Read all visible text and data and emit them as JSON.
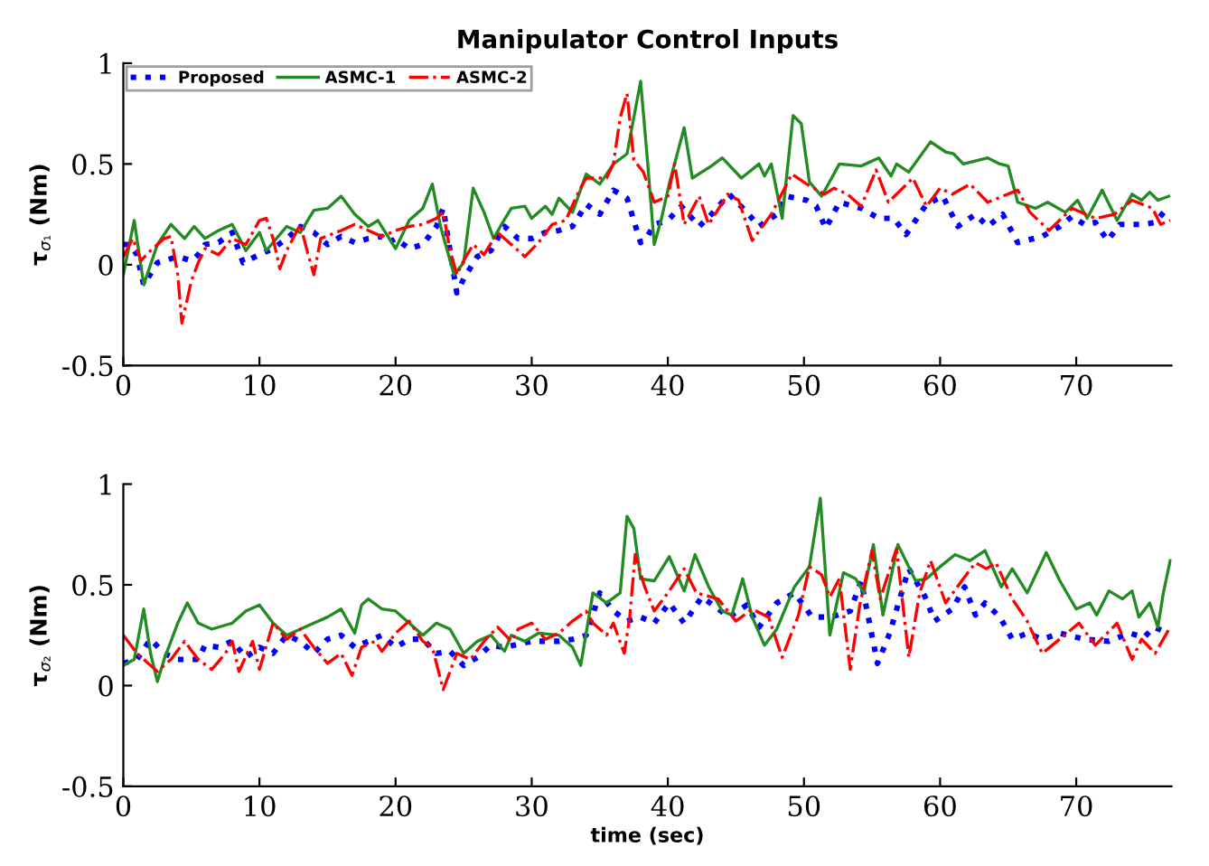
{
  "chart_data": [
    {
      "type": "line",
      "title": "Manipulator Control Inputs",
      "ylabel": "τ$_{σ₁}$ (Nm)",
      "xlim": [
        0,
        77
      ],
      "xticks": [
        0,
        10,
        20,
        30,
        40,
        50,
        60,
        70
      ],
      "ylim": [
        -0.5,
        1
      ],
      "yticks": [
        -0.5,
        0,
        0.5,
        1
      ],
      "grid": false,
      "legend": "top left",
      "series": [
        {
          "name": "Proposed",
          "color": "#0000ff",
          "line_style": "dotted",
          "x": [
            0,
            0.5,
            1,
            1.5,
            2.5,
            3,
            4,
            5,
            5.5,
            6,
            7,
            8,
            8.8,
            10,
            11,
            12,
            13,
            14,
            15,
            16,
            17,
            18,
            19,
            19.5,
            20,
            21,
            22,
            23,
            23.5,
            24,
            24.5,
            25,
            26,
            27,
            28,
            29,
            30,
            31,
            32,
            33,
            34,
            35,
            36,
            37,
            38,
            38.5,
            39,
            40,
            41,
            42.3,
            43.2,
            44.5,
            45.8,
            46.7,
            48.0,
            48.7,
            50.2,
            50.9,
            51.6,
            52.6,
            54.2,
            55.5,
            56.6,
            57.5,
            58.2,
            59.0,
            60.2,
            61.3,
            62.6,
            63.5,
            64.6,
            65.7,
            67.5,
            68.8,
            69.7,
            70.6,
            71.4,
            72.3,
            73.2,
            75.0,
            75.8,
            76.8
          ],
          "values": [
            0.1,
            0.1,
            0.05,
            -0.1,
            0.01,
            0.02,
            0.04,
            0.02,
            0.05,
            0.1,
            0.11,
            0.16,
            0.01,
            0.05,
            0.08,
            0.13,
            0.19,
            0.16,
            0.1,
            0.14,
            0.11,
            0.13,
            0.14,
            0.11,
            0.13,
            0.08,
            0.1,
            0.19,
            0.28,
            0.07,
            -0.14,
            -0.07,
            0.04,
            0.07,
            0.19,
            0.13,
            0.13,
            0.16,
            0.17,
            0.19,
            0.3,
            0.25,
            0.37,
            0.33,
            0.11,
            0.14,
            0.2,
            0.22,
            0.29,
            0.19,
            0.25,
            0.35,
            0.26,
            0.19,
            0.25,
            0.34,
            0.32,
            0.29,
            0.18,
            0.31,
            0.28,
            0.23,
            0.23,
            0.15,
            0.22,
            0.3,
            0.34,
            0.19,
            0.25,
            0.19,
            0.25,
            0.11,
            0.14,
            0.19,
            0.24,
            0.2,
            0.21,
            0.12,
            0.2,
            0.2,
            0.21,
            0.29
          ]
        },
        {
          "name": "ASMC-1",
          "color": "#228b22",
          "line_style": "solid",
          "x": [
            0,
            0.8,
            1.5,
            2.5,
            3.5,
            4.5,
            5.2,
            6,
            7,
            8,
            9,
            10,
            10.5,
            12,
            13,
            14,
            15,
            16,
            17,
            18,
            18.7,
            20,
            21,
            22,
            22.7,
            23.3,
            24.3,
            25,
            25.7,
            26.5,
            27.2,
            27.7,
            28.5,
            29.5,
            30,
            31,
            31.5,
            32,
            33,
            34,
            35,
            36,
            37,
            38,
            38.5,
            39,
            39.5,
            40.1,
            41.2,
            41.8,
            43.2,
            44.0,
            45.4,
            46.7,
            47.1,
            47.6,
            48.4,
            49.2,
            49.8,
            50.4,
            51.3,
            52.6,
            54.2,
            55.5,
            56.4,
            56.8,
            57.7,
            59.3,
            60.4,
            61.0,
            61.7,
            63.5,
            64.4,
            65.0,
            65.7,
            67.0,
            67.9,
            69.2,
            70.1,
            70.8,
            71.9,
            73.0,
            74.1,
            74.8,
            75.4,
            76.0,
            76.8
          ],
          "values": [
            -0.05,
            0.22,
            -0.1,
            0.1,
            0.2,
            0.13,
            0.19,
            0.13,
            0.17,
            0.2,
            0.07,
            0.16,
            0.07,
            0.19,
            0.16,
            0.27,
            0.28,
            0.34,
            0.25,
            0.19,
            0.22,
            0.08,
            0.22,
            0.28,
            0.4,
            0.19,
            -0.05,
            0.01,
            0.38,
            0.26,
            0.13,
            0.19,
            0.28,
            0.29,
            0.23,
            0.29,
            0.25,
            0.33,
            0.26,
            0.45,
            0.4,
            0.5,
            0.55,
            0.91,
            0.52,
            0.1,
            0.22,
            0.4,
            0.68,
            0.43,
            0.49,
            0.53,
            0.43,
            0.5,
            0.44,
            0.5,
            0.23,
            0.74,
            0.7,
            0.41,
            0.34,
            0.5,
            0.49,
            0.53,
            0.44,
            0.5,
            0.46,
            0.61,
            0.56,
            0.55,
            0.5,
            0.53,
            0.5,
            0.49,
            0.31,
            0.28,
            0.31,
            0.26,
            0.32,
            0.23,
            0.37,
            0.22,
            0.35,
            0.32,
            0.36,
            0.32,
            0.34
          ]
        },
        {
          "name": "ASMC-2",
          "color": "#ff0000",
          "line_style": "dashdot",
          "x": [
            0,
            0.7,
            1.3,
            2,
            3,
            3.5,
            4,
            4.3,
            5,
            5.5,
            6,
            7,
            8,
            9,
            10,
            10.5,
            11,
            11.5,
            12,
            13,
            13.5,
            14,
            14.5,
            16,
            17,
            18,
            19,
            20,
            21,
            22,
            23,
            23.5,
            24,
            24.5,
            25,
            25.7,
            26.5,
            27.5,
            28.5,
            29.5,
            30.5,
            31.5,
            32.5,
            33.5,
            34,
            35.5,
            36,
            36.5,
            37,
            37.5,
            38.2,
            39,
            40,
            40.5,
            41.2,
            42.3,
            43.0,
            44.4,
            45.2,
            46.2,
            47.6,
            49.1,
            50.2,
            51.5,
            52.2,
            53.2,
            54.2,
            55.3,
            56.2,
            58.0,
            59.0,
            60.0,
            60.9,
            62.2,
            63.5,
            65.7,
            66.6,
            68.0,
            69.7,
            71.4,
            72.8,
            74.1,
            75.6,
            76.2,
            76.9
          ],
          "values": [
            0.04,
            0.13,
            0.02,
            0.07,
            0.13,
            0.14,
            -0.05,
            -0.29,
            -0.08,
            0.01,
            0.08,
            0.05,
            0.13,
            0.1,
            0.22,
            0.23,
            0.13,
            -0.02,
            0.07,
            0.2,
            0.07,
            -0.05,
            0.13,
            0.17,
            0.2,
            0.17,
            0.14,
            0.17,
            0.19,
            0.2,
            0.23,
            0.26,
            0.07,
            -0.05,
            0.02,
            0.1,
            0.05,
            0.16,
            0.1,
            0.04,
            0.11,
            0.2,
            0.22,
            0.37,
            0.43,
            0.43,
            0.5,
            0.73,
            0.85,
            0.52,
            0.46,
            0.31,
            0.34,
            0.5,
            0.2,
            0.34,
            0.2,
            0.35,
            0.32,
            0.12,
            0.25,
            0.45,
            0.4,
            0.35,
            0.38,
            0.35,
            0.29,
            0.47,
            0.31,
            0.43,
            0.29,
            0.38,
            0.35,
            0.4,
            0.31,
            0.37,
            0.26,
            0.17,
            0.28,
            0.23,
            0.25,
            0.32,
            0.28,
            0.2,
            0.22
          ]
        }
      ]
    },
    {
      "type": "line",
      "xlabel": "time (sec)",
      "ylabel": "τ$_{σ₂}$ (Nm)",
      "xlim": [
        0,
        77
      ],
      "xticks": [
        0,
        10,
        20,
        30,
        40,
        50,
        60,
        70
      ],
      "ylim": [
        -0.5,
        1
      ],
      "yticks": [
        -0.5,
        0,
        0.5,
        1
      ],
      "grid": false,
      "series": [
        {
          "color": "#0000ff",
          "line_style": "dotted",
          "x": [
            0,
            1,
            2,
            3,
            4,
            5.5,
            6,
            7,
            8,
            9,
            10,
            11,
            12,
            13,
            14,
            15,
            16,
            17,
            18,
            19,
            20,
            21,
            22,
            23,
            24,
            25,
            26,
            27,
            28,
            30,
            32,
            33,
            34,
            35,
            36,
            37,
            38,
            39,
            40.1,
            41.2,
            42.5,
            43.7,
            44.5,
            45.8,
            46.7,
            48.0,
            49.3,
            50.6,
            52.0,
            53.4,
            54.2,
            55.4,
            56.3,
            56.9,
            57.7,
            58.9,
            59.6,
            60.9,
            61.8,
            62.6,
            63.3,
            64.4,
            65.3,
            66.4,
            67.5,
            68.8,
            70.6,
            72.4,
            73.9,
            75.0,
            75.7,
            76.8
          ],
          "values": [
            0.11,
            0.13,
            0.23,
            0.16,
            0.13,
            0.13,
            0.2,
            0.19,
            0.22,
            0.14,
            0.19,
            0.16,
            0.25,
            0.22,
            0.16,
            0.23,
            0.25,
            0.19,
            0.22,
            0.25,
            0.19,
            0.23,
            0.23,
            0.16,
            0.17,
            0.1,
            0.14,
            0.2,
            0.19,
            0.22,
            0.22,
            0.23,
            0.25,
            0.46,
            0.37,
            0.32,
            0.34,
            0.31,
            0.41,
            0.31,
            0.44,
            0.38,
            0.34,
            0.4,
            0.29,
            0.41,
            0.46,
            0.34,
            0.34,
            0.37,
            0.52,
            0.11,
            0.26,
            0.4,
            0.58,
            0.44,
            0.32,
            0.38,
            0.49,
            0.35,
            0.41,
            0.34,
            0.23,
            0.26,
            0.23,
            0.26,
            0.23,
            0.22,
            0.26,
            0.24,
            0.29,
            0.26
          ]
        },
        {
          "color": "#228b22",
          "line_style": "solid",
          "x": [
            0,
            0.8,
            1.5,
            2,
            2.5,
            3,
            4,
            4.7,
            5.5,
            6.5,
            8,
            9,
            10,
            11,
            12,
            13,
            14,
            15,
            16,
            17,
            17.5,
            18,
            19,
            20,
            21,
            22,
            23,
            24,
            25,
            26,
            27,
            28,
            28.5,
            29.5,
            30.5,
            32,
            33,
            33.6,
            34.5,
            35.5,
            36.5,
            37,
            37.5,
            38,
            39,
            40.1,
            41.2,
            42.0,
            43.0,
            44.0,
            44.7,
            45.5,
            46.2,
            47.1,
            48.0,
            49.3,
            50.4,
            51.2,
            51.9,
            52.9,
            53.8,
            54.4,
            55.1,
            55.8,
            56.9,
            58.2,
            59.0,
            60.0,
            61.1,
            62.2,
            63.3,
            64.5,
            65.3,
            66.4,
            67.8,
            68.8,
            70.0,
            71.0,
            71.5,
            72.4,
            73.4,
            74.1,
            74.6,
            75.4,
            76.0,
            76.4,
            76.9
          ],
          "values": [
            0.1,
            0.13,
            0.38,
            0.16,
            0.02,
            0.13,
            0.31,
            0.41,
            0.31,
            0.28,
            0.31,
            0.37,
            0.4,
            0.31,
            0.25,
            0.28,
            0.31,
            0.34,
            0.38,
            0.26,
            0.4,
            0.43,
            0.38,
            0.37,
            0.31,
            0.25,
            0.31,
            0.28,
            0.16,
            0.22,
            0.25,
            0.17,
            0.25,
            0.22,
            0.26,
            0.25,
            0.19,
            0.1,
            0.46,
            0.41,
            0.46,
            0.84,
            0.78,
            0.53,
            0.52,
            0.64,
            0.47,
            0.65,
            0.49,
            0.37,
            0.35,
            0.53,
            0.34,
            0.2,
            0.28,
            0.49,
            0.59,
            0.93,
            0.25,
            0.56,
            0.53,
            0.46,
            0.7,
            0.35,
            0.7,
            0.52,
            0.53,
            0.59,
            0.65,
            0.62,
            0.67,
            0.49,
            0.58,
            0.46,
            0.66,
            0.52,
            0.38,
            0.41,
            0.35,
            0.47,
            0.43,
            0.47,
            0.34,
            0.41,
            0.29,
            0.46,
            0.62
          ]
        },
        {
          "color": "#ff0000",
          "line_style": "dashdot",
          "x": [
            0,
            1,
            2,
            2.5,
            3.5,
            4.5,
            5.5,
            6.5,
            7.5,
            8,
            8.5,
            9.5,
            10,
            11,
            12,
            13,
            14,
            15,
            16,
            16.8,
            17.5,
            18.5,
            19,
            20,
            21,
            22,
            22.7,
            23.5,
            24.5,
            25.5,
            26.5,
            27.5,
            28.5,
            29,
            30,
            31,
            32,
            33,
            34,
            34.5,
            35.5,
            36,
            36.8,
            37.2,
            37.6,
            38.3,
            39,
            40,
            41.2,
            42.1,
            43.7,
            45.0,
            46.2,
            47.4,
            48.4,
            49.6,
            50.4,
            51.3,
            51.9,
            52.6,
            53.4,
            54.1,
            55.0,
            55.6,
            56.8,
            57.7,
            58.5,
            59.3,
            60.4,
            61.7,
            62.6,
            63.4,
            64.1,
            65.3,
            66.4,
            67.5,
            68.6,
            70.2,
            71.4,
            73.0,
            74.1,
            74.8,
            75.8,
            76.9
          ],
          "values": [
            0.25,
            0.16,
            0.1,
            0.07,
            0.13,
            0.22,
            0.13,
            0.08,
            0.16,
            0.22,
            0.07,
            0.22,
            0.08,
            0.31,
            0.23,
            0.28,
            0.19,
            0.11,
            0.16,
            0.05,
            0.19,
            0.22,
            0.17,
            0.26,
            0.32,
            0.22,
            0.19,
            -0.02,
            0.16,
            0.13,
            0.22,
            0.29,
            0.22,
            0.28,
            0.31,
            0.23,
            0.26,
            0.32,
            0.37,
            0.31,
            0.25,
            0.31,
            0.16,
            0.34,
            0.65,
            0.49,
            0.37,
            0.46,
            0.58,
            0.46,
            0.43,
            0.32,
            0.38,
            0.34,
            0.14,
            0.35,
            0.59,
            0.55,
            0.44,
            0.53,
            0.08,
            0.4,
            0.67,
            0.43,
            0.68,
            0.14,
            0.46,
            0.62,
            0.41,
            0.53,
            0.61,
            0.58,
            0.61,
            0.43,
            0.32,
            0.16,
            0.22,
            0.31,
            0.2,
            0.31,
            0.13,
            0.23,
            0.16,
            0.29
          ]
        }
      ]
    }
  ]
}
